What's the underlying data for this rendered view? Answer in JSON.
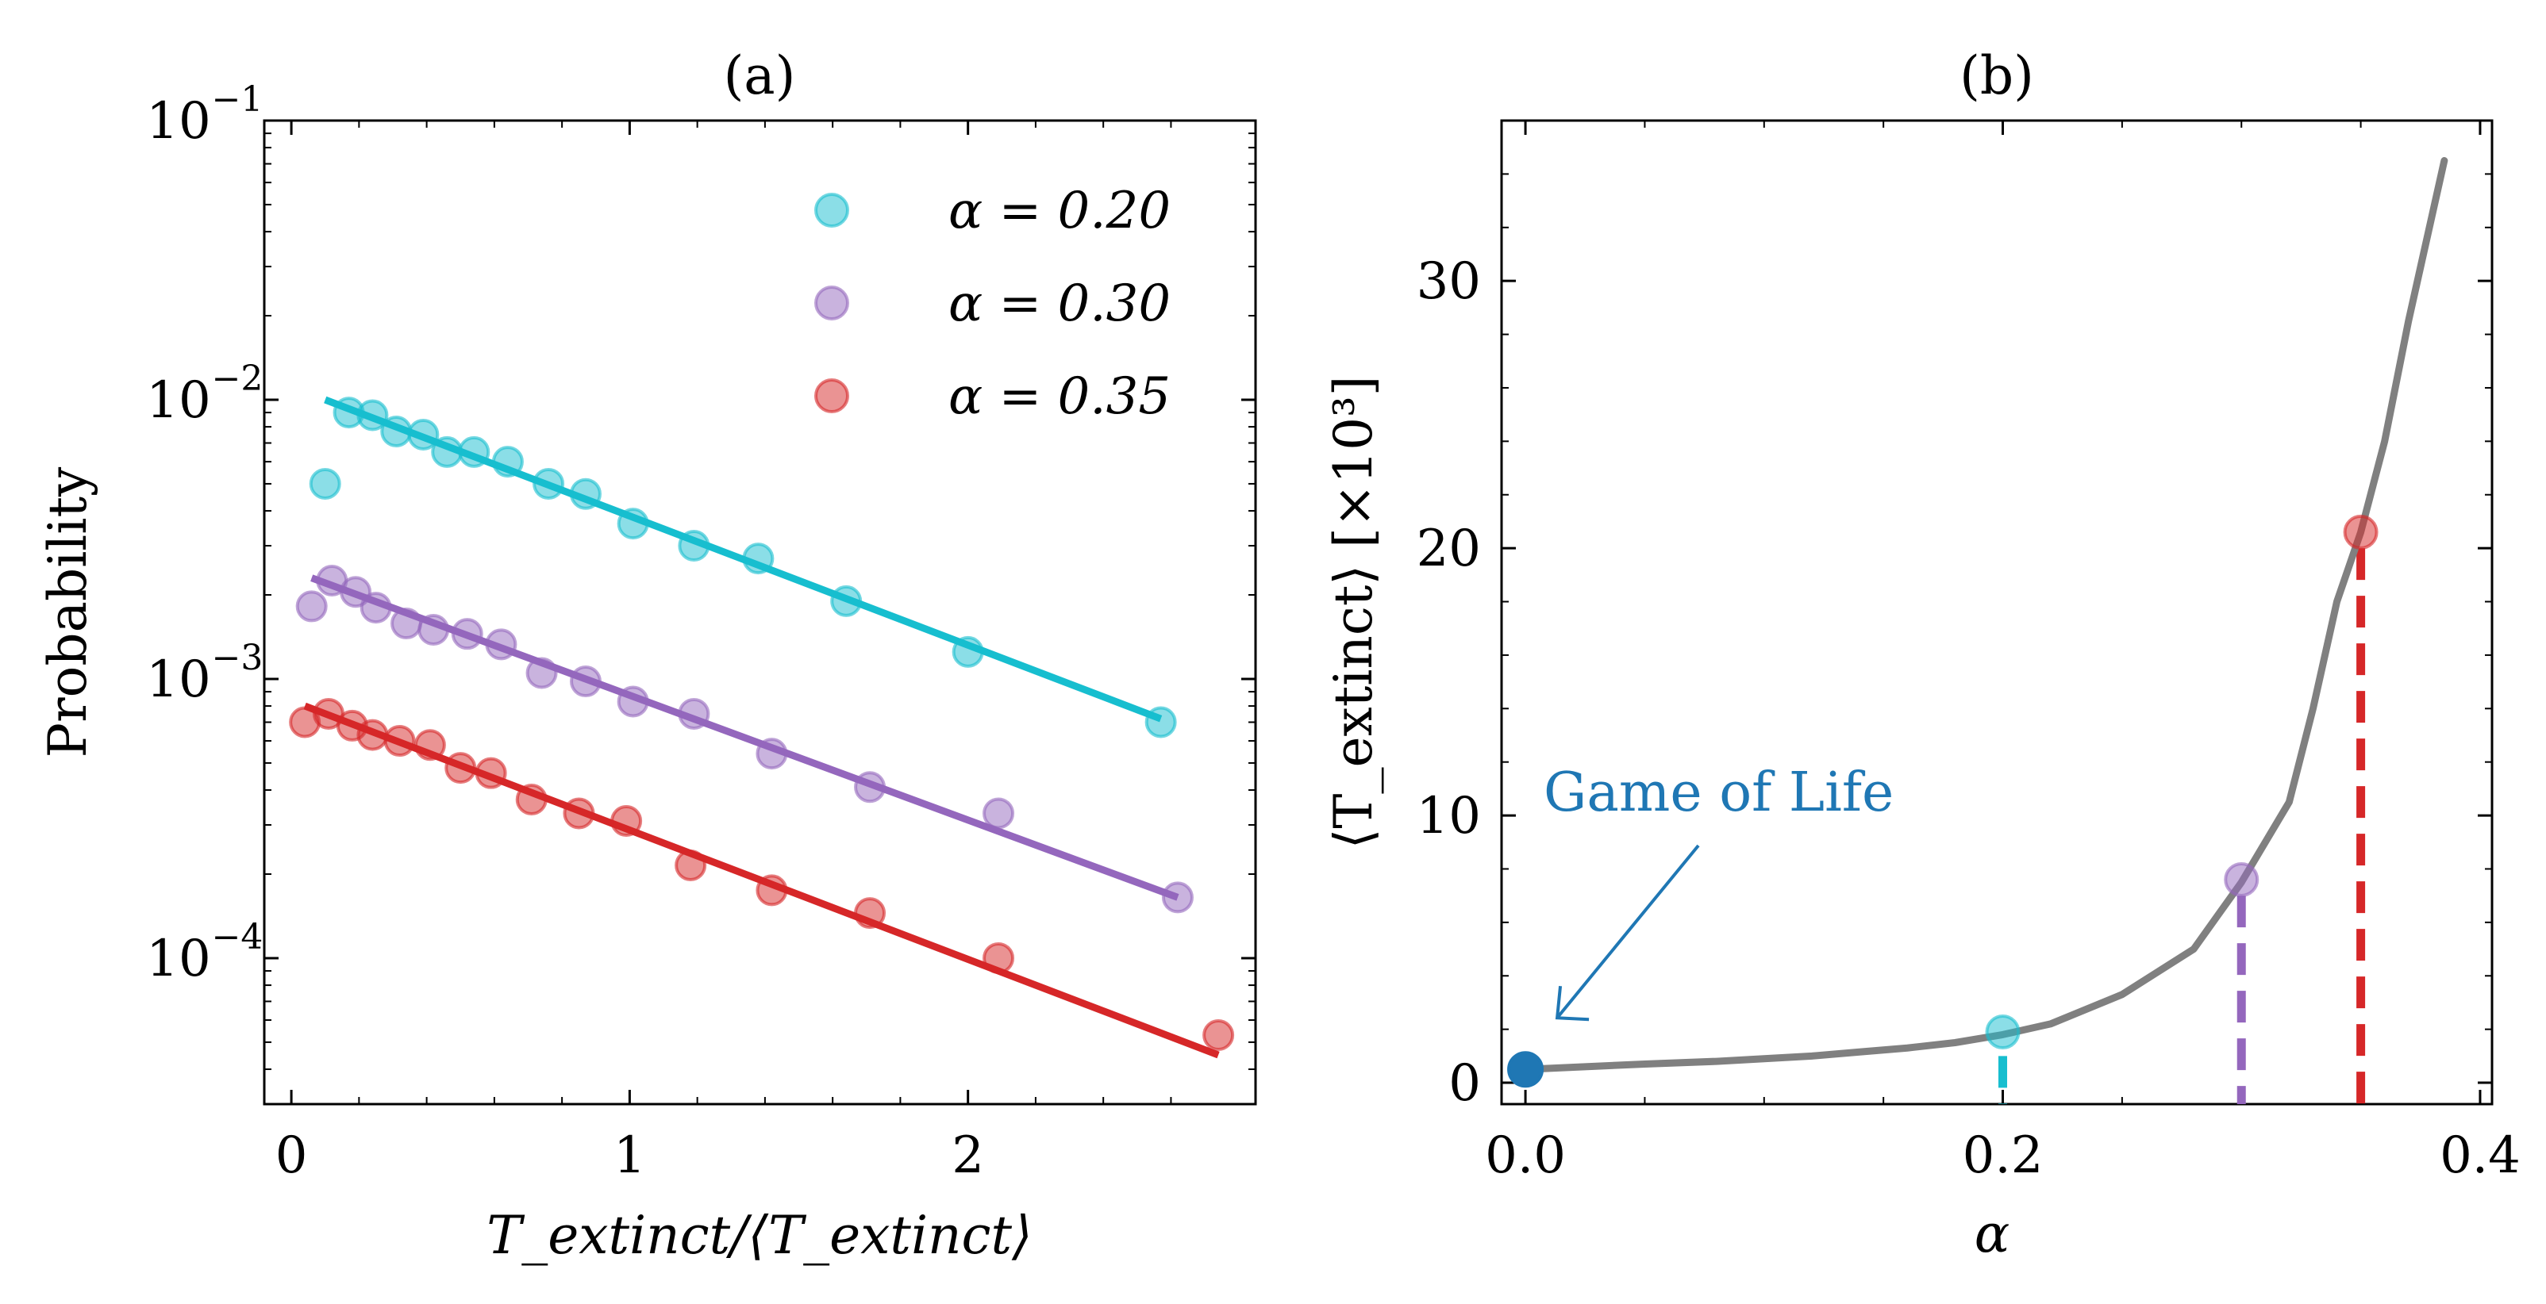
{
  "chart_data": [
    {
      "type": "scatter",
      "title": "(a)",
      "xlabel": "T_extinct/⟨T_extinct⟩",
      "ylabel": "Probability",
      "yscale": "log",
      "xlim": [
        -0.08,
        2.85
      ],
      "ylim": [
        3e-05,
        0.1
      ],
      "x_ticks": [
        0,
        1,
        2
      ],
      "y_ticks": [
        {
          "value": 0.1,
          "base": "10",
          "exp": "−1"
        },
        {
          "value": 0.01,
          "base": "10",
          "exp": "−2"
        },
        {
          "value": 0.001,
          "base": "10",
          "exp": "−3"
        },
        {
          "value": 0.0001,
          "base": "10",
          "exp": "−4"
        }
      ],
      "legend_position": "top-right",
      "series": [
        {
          "name": "α = 0.20",
          "color": "#17becf",
          "x": [
            0.1,
            0.17,
            0.24,
            0.31,
            0.39,
            0.46,
            0.54,
            0.64,
            0.76,
            0.87,
            1.01,
            1.19,
            1.38,
            1.64,
            2.0,
            2.57
          ],
          "y": [
            0.005,
            0.009,
            0.0088,
            0.0077,
            0.0075,
            0.0065,
            0.0065,
            0.006,
            0.005,
            0.0046,
            0.0036,
            0.003,
            0.0027,
            0.0019,
            0.00125,
            0.0007
          ],
          "fit": {
            "x": [
              0.1,
              2.57
            ],
            "y": [
              0.01,
              0.00072
            ]
          }
        },
        {
          "name": "α = 0.30",
          "color": "#9467bd",
          "x": [
            0.06,
            0.12,
            0.19,
            0.25,
            0.34,
            0.42,
            0.52,
            0.62,
            0.74,
            0.87,
            1.01,
            1.19,
            1.42,
            1.71,
            2.09,
            2.62
          ],
          "y": [
            0.00182,
            0.00225,
            0.00205,
            0.0018,
            0.00158,
            0.0015,
            0.00145,
            0.00133,
            0.00105,
            0.00098,
            0.00083,
            0.00075,
            0.00054,
            0.00041,
            0.00033,
            0.000165
          ],
          "fit": {
            "x": [
              0.06,
              2.62
            ],
            "y": [
              0.0023,
              0.000165
            ]
          }
        },
        {
          "name": "α = 0.35",
          "color": "#d62728",
          "x": [
            0.04,
            0.11,
            0.18,
            0.24,
            0.32,
            0.41,
            0.5,
            0.59,
            0.71,
            0.85,
            0.99,
            1.18,
            1.42,
            1.71,
            2.09,
            2.74
          ],
          "y": [
            0.0007,
            0.00075,
            0.00068,
            0.00063,
            0.0006,
            0.00058,
            0.00048,
            0.00046,
            0.00037,
            0.00033,
            0.00031,
            0.000215,
            0.000175,
            0.000145,
            0.0001,
            5.3e-05
          ],
          "fit": {
            "x": [
              0.04,
              2.74
            ],
            "y": [
              0.0008,
              4.5e-05
            ]
          }
        }
      ]
    },
    {
      "type": "line",
      "title": "(b)",
      "xlabel": "α",
      "ylabel": "⟨T_extinct⟩ [×10³]",
      "xlim": [
        -0.01,
        0.405
      ],
      "ylim": [
        -0.8,
        36
      ],
      "x_ticks": [
        0.0,
        0.2,
        0.4
      ],
      "x_tick_labels": [
        "0.0",
        "0.2",
        "0.4"
      ],
      "y_ticks": [
        0,
        10,
        20,
        30
      ],
      "annotation": {
        "text": "Game of Life",
        "point": [
          0.0,
          0.5
        ],
        "color": "#1f77b4"
      },
      "curve": {
        "color": "#808080",
        "x": [
          0.0,
          0.05,
          0.08,
          0.1,
          0.12,
          0.14,
          0.16,
          0.18,
          0.2,
          0.22,
          0.25,
          0.28,
          0.3,
          0.32,
          0.33,
          0.34,
          0.35,
          0.36,
          0.37,
          0.38,
          0.385
        ],
        "y": [
          0.5,
          0.7,
          0.8,
          0.9,
          1.0,
          1.15,
          1.3,
          1.5,
          1.8,
          2.2,
          3.3,
          5.0,
          7.5,
          10.5,
          14.0,
          18.0,
          20.6,
          24.0,
          28.5,
          32.5,
          34.5
        ]
      },
      "markers": [
        {
          "x": 0.0,
          "y": 0.5,
          "color": "#1f77b4"
        },
        {
          "x": 0.2,
          "y": 1.9,
          "color": "#17becf"
        },
        {
          "x": 0.3,
          "y": 7.6,
          "color": "#9467bd"
        },
        {
          "x": 0.35,
          "y": 20.6,
          "color": "#d62728"
        }
      ],
      "dashed_drops": [
        {
          "x": 0.2,
          "from": 1.0,
          "color": "#17becf"
        },
        {
          "x": 0.3,
          "from": 7.0,
          "color": "#9467bd"
        },
        {
          "x": 0.35,
          "from": 20.0,
          "color": "#d62728"
        }
      ]
    }
  ]
}
